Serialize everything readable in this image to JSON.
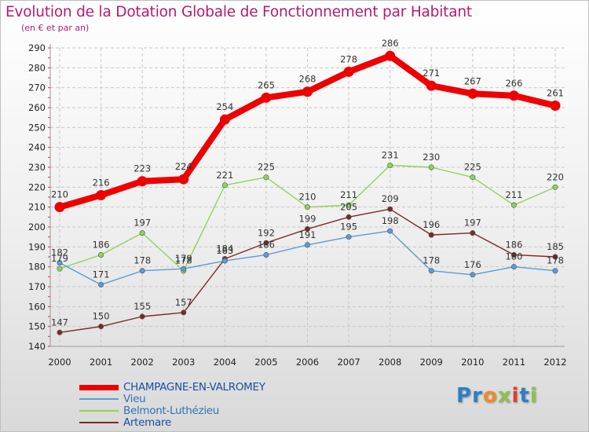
{
  "header": {
    "title": "Evolution de la Dotation Globale de Fonctionnement par Habitant",
    "subtitle": "(en € et par an)"
  },
  "logo": {
    "text": "Proxiti",
    "letters": [
      "P",
      "r",
      "o",
      "x",
      "i",
      "t",
      "i"
    ],
    "colors": [
      "#2c7fc7",
      "#2c7fc7",
      "#f08a24",
      "#8bc34a",
      "#e33b30",
      "#2c7fc7",
      "#8bc34a"
    ]
  },
  "colors": {
    "title": "#b31a72",
    "grid_axis": "#c7c7c7",
    "axis_ticks": "#d23a3a"
  },
  "chart_data": {
    "type": "line",
    "title": "Evolution de la Dotation Globale de Fonctionnement par Habitant",
    "subtitle": "(en € et par an)",
    "x": [
      "2000",
      "2001",
      "2002",
      "2003",
      "2004",
      "2005",
      "2006",
      "2007",
      "2008",
      "2009",
      "2010",
      "2011",
      "2012"
    ],
    "ylim": [
      140,
      290
    ],
    "yticks": [
      140,
      150,
      160,
      170,
      180,
      190,
      200,
      210,
      220,
      230,
      240,
      250,
      260,
      270,
      280,
      290
    ],
    "grid": true,
    "legend_position": "bottom-left",
    "series": [
      {
        "name": "CHAMPAGNE-EN-VALROMEY",
        "color": "#ee0000",
        "width": "thick",
        "values": [
          210,
          216,
          223,
          224,
          254,
          265,
          268,
          278,
          286,
          271,
          267,
          266,
          261
        ],
        "labels": [
          "210",
          "216",
          "223",
          "224",
          "254",
          "265",
          "268",
          "278",
          "286",
          "271",
          "267",
          "266",
          "261"
        ]
      },
      {
        "name": "Vieu",
        "color": "#5b9bd5",
        "width": "thin",
        "values": [
          182,
          171,
          178,
          179,
          183,
          186,
          191,
          195,
          198,
          178,
          176,
          180,
          178
        ],
        "labels": [
          "182",
          "171",
          "178",
          "179",
          "183",
          "186",
          "191",
          "195",
          "198",
          "178",
          "176",
          "180",
          "178"
        ]
      },
      {
        "name": "Belmont-Luthézieu",
        "color": "#8fd35a",
        "width": "thin",
        "values": [
          179,
          186,
          197,
          178,
          221,
          225,
          210,
          211,
          231,
          230,
          225,
          211,
          220
        ],
        "labels": [
          "179",
          "186",
          "197",
          "178",
          "221",
          "225",
          "210",
          "211",
          "231",
          "230",
          "225",
          "211",
          "220"
        ]
      },
      {
        "name": "Artemare",
        "color": "#7a2a2a",
        "width": "thin",
        "values": [
          147,
          150,
          155,
          157,
          184,
          192,
          199,
          205,
          209,
          196,
          197,
          186,
          185
        ],
        "labels": [
          "147",
          "150",
          "155",
          "157",
          "184",
          "192",
          "199",
          "205",
          "209",
          "196",
          "197",
          "186",
          "185"
        ]
      }
    ]
  }
}
